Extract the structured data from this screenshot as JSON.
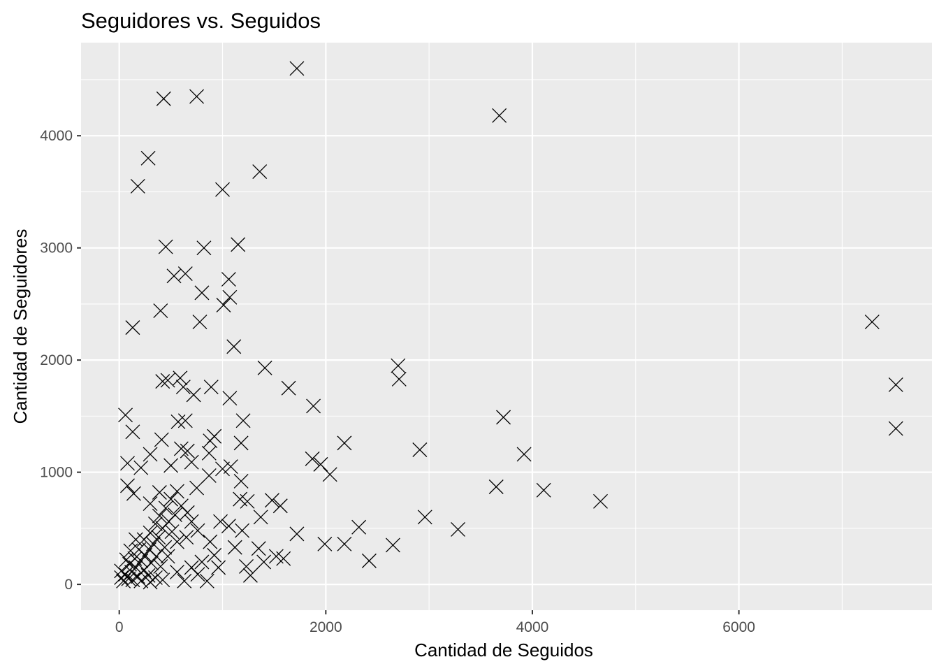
{
  "chart_data": {
    "type": "scatter",
    "title": "Seguidores vs. Seguidos",
    "xlabel": "Cantidad de Seguidos",
    "ylabel": "Cantidad de Seguidores",
    "xlim": [
      -370,
      7870
    ],
    "ylim": [
      -230,
      4830
    ],
    "x_ticks": [
      0,
      2000,
      4000,
      6000
    ],
    "x_tick_labels": [
      "0",
      "2000",
      "4000",
      "6000"
    ],
    "y_ticks": [
      0,
      1000,
      2000,
      3000,
      4000
    ],
    "y_tick_labels": [
      "0",
      "1000",
      "2000",
      "3000",
      "4000"
    ],
    "grid": true,
    "legend": "none",
    "marker": "x",
    "colors": {
      "panel": "#ebebeb",
      "grid": "#ffffff",
      "point": "#000000",
      "tick_text": "#4d4d4d"
    },
    "series": [
      {
        "points": [
          [
            1720,
            4600
          ],
          [
            750,
            4350
          ],
          [
            430,
            4330
          ],
          [
            3680,
            4180
          ],
          [
            280,
            3800
          ],
          [
            1360,
            3680
          ],
          [
            180,
            3550
          ],
          [
            1000,
            3520
          ],
          [
            450,
            3010
          ],
          [
            820,
            3000
          ],
          [
            1150,
            3030
          ],
          [
            530,
            2750
          ],
          [
            640,
            2770
          ],
          [
            1060,
            2720
          ],
          [
            800,
            2600
          ],
          [
            1070,
            2560
          ],
          [
            1010,
            2490
          ],
          [
            400,
            2440
          ],
          [
            780,
            2340
          ],
          [
            7290,
            2340
          ],
          [
            130,
            2290
          ],
          [
            1110,
            2120
          ],
          [
            1410,
            1930
          ],
          [
            2700,
            1950
          ],
          [
            2710,
            1830
          ],
          [
            420,
            1810
          ],
          [
            470,
            1820
          ],
          [
            590,
            1840
          ],
          [
            620,
            1760
          ],
          [
            890,
            1760
          ],
          [
            1640,
            1750
          ],
          [
            7520,
            1780
          ],
          [
            720,
            1690
          ],
          [
            1070,
            1660
          ],
          [
            1880,
            1590
          ],
          [
            60,
            1510
          ],
          [
            570,
            1450
          ],
          [
            640,
            1460
          ],
          [
            1200,
            1460
          ],
          [
            3720,
            1490
          ],
          [
            7520,
            1390
          ],
          [
            130,
            1360
          ],
          [
            410,
            1290
          ],
          [
            920,
            1320
          ],
          [
            880,
            1280
          ],
          [
            2180,
            1260
          ],
          [
            1180,
            1260
          ],
          [
            600,
            1210
          ],
          [
            660,
            1190
          ],
          [
            2910,
            1200
          ],
          [
            300,
            1160
          ],
          [
            3920,
            1160
          ],
          [
            870,
            1170
          ],
          [
            1870,
            1120
          ],
          [
            1950,
            1070
          ],
          [
            80,
            1080
          ],
          [
            700,
            1090
          ],
          [
            500,
            1060
          ],
          [
            1000,
            1030
          ],
          [
            1080,
            1050
          ],
          [
            210,
            1040
          ],
          [
            2040,
            980
          ],
          [
            870,
            970
          ],
          [
            1180,
            920
          ],
          [
            80,
            880
          ],
          [
            3650,
            870
          ],
          [
            4110,
            840
          ],
          [
            140,
            810
          ],
          [
            560,
            830
          ],
          [
            750,
            860
          ],
          [
            4660,
            740
          ],
          [
            1170,
            760
          ],
          [
            1240,
            740
          ],
          [
            1480,
            750
          ],
          [
            1560,
            700
          ],
          [
            1370,
            600
          ],
          [
            2960,
            600
          ],
          [
            3280,
            490
          ],
          [
            2320,
            510
          ],
          [
            1060,
            520
          ],
          [
            980,
            560
          ],
          [
            1190,
            480
          ],
          [
            1720,
            450
          ],
          [
            1990,
            360
          ],
          [
            2180,
            360
          ],
          [
            2650,
            350
          ],
          [
            1350,
            320
          ],
          [
            1520,
            250
          ],
          [
            1590,
            230
          ],
          [
            2420,
            210
          ],
          [
            1400,
            200
          ],
          [
            1270,
            80
          ],
          [
            760,
            90
          ],
          [
            850,
            30
          ],
          [
            960,
            150
          ],
          [
            630,
            30
          ],
          [
            540,
            620
          ],
          [
            600,
            700
          ],
          [
            660,
            640
          ],
          [
            480,
            560
          ],
          [
            420,
            500
          ],
          [
            510,
            470
          ],
          [
            380,
            420
          ],
          [
            330,
            360
          ],
          [
            290,
            310
          ],
          [
            440,
            330
          ],
          [
            560,
            380
          ],
          [
            250,
            260
          ],
          [
            360,
            250
          ],
          [
            470,
            250
          ],
          [
            210,
            210
          ],
          [
            310,
            190
          ],
          [
            400,
            160
          ],
          [
            160,
            150
          ],
          [
            240,
            130
          ],
          [
            120,
            110
          ],
          [
            180,
            70
          ],
          [
            90,
            50
          ],
          [
            40,
            30
          ],
          [
            60,
            90
          ],
          [
            130,
            40
          ],
          [
            20,
            60
          ],
          [
            210,
            30
          ],
          [
            280,
            80
          ],
          [
            350,
            60
          ],
          [
            100,
            180
          ],
          [
            150,
            230
          ],
          [
            190,
            310
          ],
          [
            240,
            400
          ],
          [
            300,
            460
          ],
          [
            350,
            540
          ],
          [
            390,
            610
          ],
          [
            450,
            680
          ],
          [
            500,
            760
          ],
          [
            300,
            720
          ],
          [
            390,
            820
          ],
          [
            700,
            560
          ],
          [
            760,
            480
          ],
          [
            650,
            420
          ],
          [
            880,
            380
          ],
          [
            920,
            260
          ],
          [
            800,
            200
          ],
          [
            1120,
            330
          ],
          [
            1230,
            160
          ],
          [
            700,
            150
          ],
          [
            560,
            110
          ],
          [
            160,
            400
          ],
          [
            110,
            300
          ],
          [
            70,
            220
          ],
          [
            20,
            120
          ],
          [
            300,
            20
          ],
          [
            420,
            40
          ]
        ]
      }
    ]
  }
}
